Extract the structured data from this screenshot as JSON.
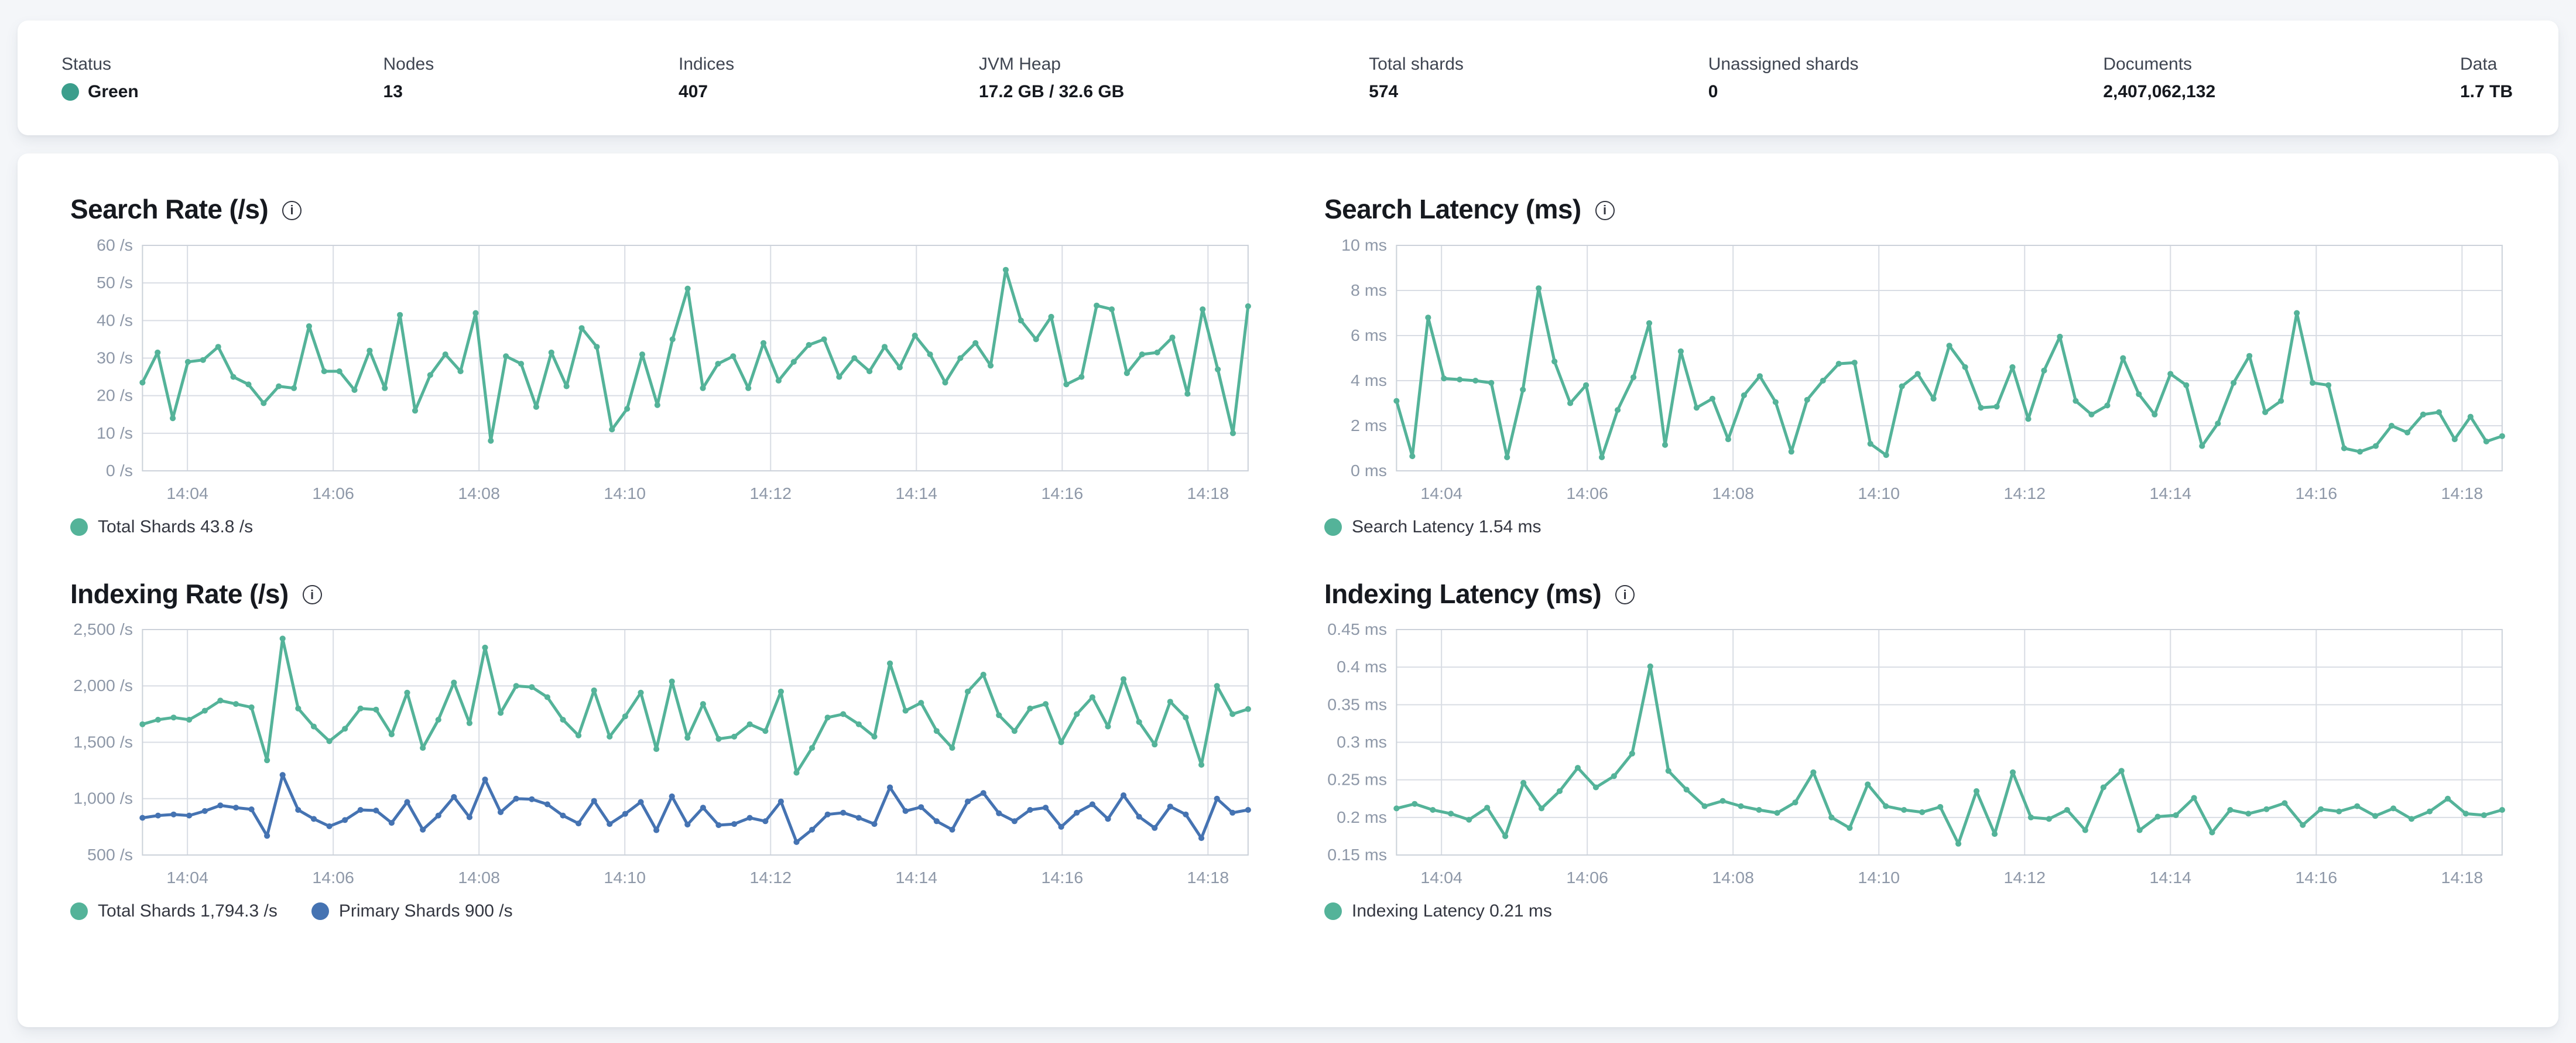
{
  "stats_bar": {
    "items": [
      {
        "label": "Status",
        "value": "Green",
        "has_dot": true,
        "dot_color": "#3b9e8c"
      },
      {
        "label": "Nodes",
        "value": "13"
      },
      {
        "label": "Indices",
        "value": "407"
      },
      {
        "label": "JVM Heap",
        "value": "17.2 GB / 32.6 GB"
      },
      {
        "label": "Total shards",
        "value": "574"
      },
      {
        "label": "Unassigned shards",
        "value": "0"
      },
      {
        "label": "Documents",
        "value": "2,407,062,132"
      },
      {
        "label": "Data",
        "value": "1.7 TB"
      }
    ]
  },
  "colors": {
    "teal": "#54b399",
    "blue": "#4573b2",
    "grid": "#d9dde4",
    "plot_border": "#ccd2da",
    "tick_text": "#8e98a8"
  },
  "chart_data": [
    {
      "id": "search-rate",
      "type": "line",
      "title": "Search Rate (/s)",
      "x_start_seconds": 203,
      "x_end_seconds": 1113,
      "x_ticks": [
        {
          "t": 240,
          "label": "14:04"
        },
        {
          "t": 360,
          "label": "14:06"
        },
        {
          "t": 480,
          "label": "14:08"
        },
        {
          "t": 600,
          "label": "14:10"
        },
        {
          "t": 720,
          "label": "14:12"
        },
        {
          "t": 840,
          "label": "14:14"
        },
        {
          "t": 960,
          "label": "14:16"
        },
        {
          "t": 1080,
          "label": "14:18"
        }
      ],
      "y_min": 0,
      "y_max": 60,
      "y_ticks": [
        {
          "v": 0,
          "label": "0 /s"
        },
        {
          "v": 10,
          "label": "10 /s"
        },
        {
          "v": 20,
          "label": "20 /s"
        },
        {
          "v": 30,
          "label": "30 /s"
        },
        {
          "v": 40,
          "label": "40 /s"
        },
        {
          "v": 50,
          "label": "50 /s"
        },
        {
          "v": 60,
          "label": "60 /s"
        }
      ],
      "series": [
        {
          "name": "Total Shards",
          "current": "43.8 /s",
          "color": "#54b399",
          "values": [
            23.5,
            31.5,
            14,
            29,
            29.5,
            33,
            25,
            23,
            18,
            22.5,
            22,
            38.5,
            26.5,
            26.5,
            21.5,
            32,
            22,
            41.5,
            16,
            25.5,
            31,
            26.5,
            42,
            8,
            30.5,
            28.5,
            17,
            31.5,
            22.5,
            38,
            33,
            11,
            16.5,
            31,
            17.5,
            35,
            48.5,
            22,
            28.5,
            30.5,
            22,
            34,
            24,
            29,
            33.5,
            35,
            25,
            30,
            26.5,
            33,
            27.5,
            36,
            31,
            23.5,
            30,
            34,
            28,
            53.5,
            40,
            35,
            41,
            23,
            25,
            44,
            43,
            26,
            31,
            31.5,
            35.5,
            20.5,
            43,
            27,
            10,
            43.8
          ]
        }
      ]
    },
    {
      "id": "search-latency",
      "type": "line",
      "title": "Search Latency (ms)",
      "x_start_seconds": 203,
      "x_end_seconds": 1113,
      "x_ticks": [
        {
          "t": 240,
          "label": "14:04"
        },
        {
          "t": 360,
          "label": "14:06"
        },
        {
          "t": 480,
          "label": "14:08"
        },
        {
          "t": 600,
          "label": "14:10"
        },
        {
          "t": 720,
          "label": "14:12"
        },
        {
          "t": 840,
          "label": "14:14"
        },
        {
          "t": 960,
          "label": "14:16"
        },
        {
          "t": 1080,
          "label": "14:18"
        }
      ],
      "y_min": 0,
      "y_max": 10,
      "y_ticks": [
        {
          "v": 0,
          "label": "0 ms"
        },
        {
          "v": 2,
          "label": "2 ms"
        },
        {
          "v": 4,
          "label": "4 ms"
        },
        {
          "v": 6,
          "label": "6 ms"
        },
        {
          "v": 8,
          "label": "8 ms"
        },
        {
          "v": 10,
          "label": "10 ms"
        }
      ],
      "series": [
        {
          "name": "Search Latency",
          "current": "1.54 ms",
          "color": "#54b399",
          "values": [
            3.1,
            0.65,
            6.8,
            4.1,
            4.05,
            4.0,
            3.9,
            0.6,
            3.6,
            8.1,
            4.85,
            3.0,
            3.8,
            0.6,
            2.7,
            4.15,
            6.55,
            1.15,
            5.3,
            2.8,
            3.2,
            1.4,
            3.35,
            4.2,
            3.05,
            0.85,
            3.15,
            4.0,
            4.75,
            4.8,
            1.2,
            0.7,
            3.75,
            4.3,
            3.2,
            5.55,
            4.6,
            2.8,
            2.85,
            4.6,
            2.3,
            4.45,
            5.95,
            3.1,
            2.5,
            2.9,
            5.0,
            3.4,
            2.5,
            4.3,
            3.8,
            1.1,
            2.1,
            3.9,
            5.1,
            2.6,
            3.1,
            7.0,
            3.9,
            3.8,
            1.0,
            0.85,
            1.1,
            2.0,
            1.7,
            2.5,
            2.6,
            1.4,
            2.4,
            1.3,
            1.54
          ]
        }
      ]
    },
    {
      "id": "indexing-rate",
      "type": "line",
      "title": "Indexing Rate (/s)",
      "x_start_seconds": 203,
      "x_end_seconds": 1113,
      "x_ticks": [
        {
          "t": 240,
          "label": "14:04"
        },
        {
          "t": 360,
          "label": "14:06"
        },
        {
          "t": 480,
          "label": "14:08"
        },
        {
          "t": 600,
          "label": "14:10"
        },
        {
          "t": 720,
          "label": "14:12"
        },
        {
          "t": 840,
          "label": "14:14"
        },
        {
          "t": 960,
          "label": "14:16"
        },
        {
          "t": 1080,
          "label": "14:18"
        }
      ],
      "y_min": 500,
      "y_max": 2500,
      "y_ticks": [
        {
          "v": 500,
          "label": "500 /s"
        },
        {
          "v": 1000,
          "label": "1,000 /s"
        },
        {
          "v": 1500,
          "label": "1,500 /s"
        },
        {
          "v": 2000,
          "label": "2,000 /s"
        },
        {
          "v": 2500,
          "label": "2,500 /s"
        }
      ],
      "series": [
        {
          "name": "Total Shards",
          "current": "1,794.3 /s",
          "color": "#54b399",
          "values": [
            1660,
            1700,
            1720,
            1700,
            1780,
            1870,
            1840,
            1810,
            1340,
            2420,
            1800,
            1640,
            1510,
            1620,
            1800,
            1790,
            1570,
            1940,
            1450,
            1700,
            2030,
            1670,
            2340,
            1760,
            2000,
            1990,
            1900,
            1700,
            1560,
            1960,
            1550,
            1730,
            1940,
            1440,
            2040,
            1540,
            1840,
            1530,
            1550,
            1660,
            1600,
            1950,
            1230,
            1450,
            1720,
            1750,
            1660,
            1550,
            2200,
            1780,
            1850,
            1600,
            1450,
            1950,
            2100,
            1740,
            1600,
            1800,
            1840,
            1500,
            1750,
            1900,
            1640,
            2060,
            1680,
            1480,
            1860,
            1720,
            1300,
            2000,
            1750,
            1794.3
          ]
        },
        {
          "name": "Primary Shards",
          "current": "900 /s",
          "color": "#4573b2",
          "values": [
            830,
            850,
            860,
            850,
            890,
            940,
            920,
            905,
            670,
            1210,
            900,
            820,
            755,
            810,
            900,
            895,
            785,
            970,
            725,
            850,
            1015,
            835,
            1170,
            880,
            1000,
            995,
            950,
            850,
            780,
            980,
            775,
            865,
            970,
            720,
            1020,
            770,
            920,
            765,
            775,
            830,
            800,
            975,
            615,
            725,
            860,
            875,
            830,
            775,
            1100,
            890,
            925,
            800,
            725,
            975,
            1050,
            870,
            800,
            900,
            920,
            750,
            875,
            950,
            820,
            1030,
            840,
            740,
            930,
            860,
            650,
            1000,
            875,
            900
          ]
        }
      ]
    },
    {
      "id": "indexing-latency",
      "type": "line",
      "title": "Indexing Latency (ms)",
      "x_start_seconds": 203,
      "x_end_seconds": 1113,
      "x_ticks": [
        {
          "t": 240,
          "label": "14:04"
        },
        {
          "t": 360,
          "label": "14:06"
        },
        {
          "t": 480,
          "label": "14:08"
        },
        {
          "t": 600,
          "label": "14:10"
        },
        {
          "t": 720,
          "label": "14:12"
        },
        {
          "t": 840,
          "label": "14:14"
        },
        {
          "t": 960,
          "label": "14:16"
        },
        {
          "t": 1080,
          "label": "14:18"
        }
      ],
      "y_min": 0.15,
      "y_max": 0.45,
      "y_ticks": [
        {
          "v": 0.15,
          "label": "0.15 ms"
        },
        {
          "v": 0.2,
          "label": "0.2 ms"
        },
        {
          "v": 0.25,
          "label": "0.25 ms"
        },
        {
          "v": 0.3,
          "label": "0.3 ms"
        },
        {
          "v": 0.35,
          "label": "0.35 ms"
        },
        {
          "v": 0.4,
          "label": "0.4 ms"
        },
        {
          "v": 0.45,
          "label": "0.45 ms"
        }
      ],
      "series": [
        {
          "name": "Indexing Latency",
          "current": "0.21 ms",
          "color": "#54b399",
          "values": [
            0.212,
            0.218,
            0.21,
            0.205,
            0.197,
            0.213,
            0.175,
            0.246,
            0.212,
            0.235,
            0.266,
            0.24,
            0.255,
            0.285,
            0.401,
            0.262,
            0.237,
            0.215,
            0.222,
            0.215,
            0.21,
            0.206,
            0.22,
            0.26,
            0.2,
            0.186,
            0.244,
            0.215,
            0.21,
            0.207,
            0.214,
            0.165,
            0.235,
            0.178,
            0.26,
            0.2,
            0.198,
            0.21,
            0.183,
            0.24,
            0.262,
            0.183,
            0.201,
            0.203,
            0.226,
            0.18,
            0.21,
            0.205,
            0.211,
            0.219,
            0.19,
            0.211,
            0.208,
            0.215,
            0.202,
            0.212,
            0.198,
            0.208,
            0.225,
            0.205,
            0.203,
            0.21
          ]
        }
      ]
    }
  ]
}
